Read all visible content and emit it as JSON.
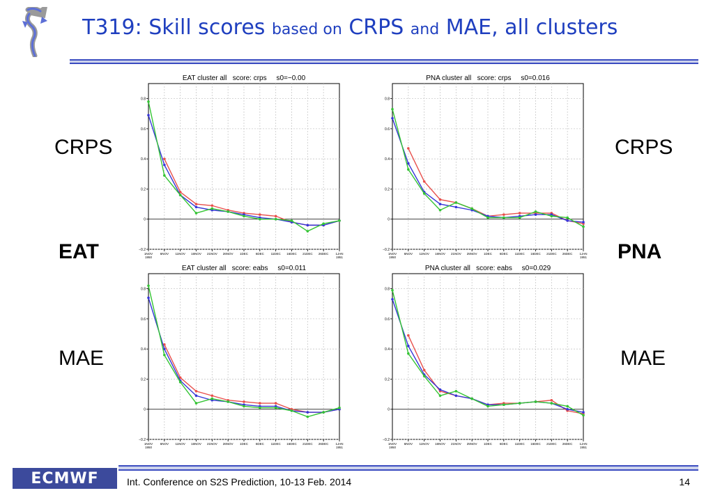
{
  "slide": {
    "title_parts": [
      "T319: Skill scores ",
      "based on",
      " CRPS ",
      "and",
      " MAE,  all clusters"
    ],
    "labels": {
      "crps_left": "CRPS",
      "crps_right": "CRPS",
      "eat": "EAT",
      "pna": "PNA",
      "mae_left": "MAE",
      "mae_right": "MAE"
    },
    "footer": {
      "logo_text": "ECMWF",
      "conference": "Int. Conference on S2S Prediction, 10-13 Feb. 2014",
      "page": "14"
    },
    "colors": {
      "title": "#1f3fbf",
      "rule": "#3b4cc0",
      "red": "#e8504c",
      "blue": "#3535d8",
      "green": "#33c433",
      "logo_bg": "#3c4a9c"
    }
  },
  "chart_data": [
    {
      "type": "line",
      "title": "EAT cluster all   score: crps     s0=−0.00",
      "x": [
        "1NOV\n1950",
        "6NOV",
        "11NOV",
        "16NOV",
        "21NOV",
        "26NOV",
        "1DEC",
        "6DEC",
        "11DEC",
        "16DEC",
        "21DEC",
        "26DEC",
        "1JAN\n1951"
      ],
      "yticks": [
        "−0.2",
        "0",
        "0.2",
        "0.4",
        "0.6",
        "0.8"
      ],
      "ylim": [
        -0.2,
        0.9
      ],
      "series": [
        {
          "color": "red",
          "values": [
            null,
            0.4,
            0.18,
            0.1,
            0.09,
            0.06,
            0.04,
            0.03,
            0.02,
            -0.02,
            -0.04,
            -0.04,
            -0.01
          ]
        },
        {
          "color": "blue",
          "values": [
            0.69,
            0.36,
            0.16,
            0.08,
            0.06,
            0.05,
            0.03,
            0.01,
            0.0,
            -0.02,
            -0.04,
            -0.04,
            -0.01
          ]
        },
        {
          "color": "green",
          "values": [
            0.78,
            0.29,
            0.16,
            0.04,
            0.07,
            0.05,
            0.02,
            0.0,
            0.0,
            -0.01,
            -0.08,
            -0.03,
            -0.01
          ]
        }
      ]
    },
    {
      "type": "line",
      "title": "PNA cluster all   score: crps     s0=0.016",
      "x": [
        "1NOV\n1950",
        "6NOV",
        "11NOV",
        "16NOV",
        "21NOV",
        "25NOV",
        "1DEC",
        "6DEC",
        "11DEC",
        "16DEC",
        "21DEC",
        "26DEC",
        "1JAN\n1951"
      ],
      "yticks": [
        "−0.2",
        "0",
        "0.2",
        "0.4",
        "0.6",
        "0.8"
      ],
      "ylim": [
        -0.2,
        0.9
      ],
      "series": [
        {
          "color": "red",
          "values": [
            null,
            0.47,
            0.25,
            0.13,
            0.11,
            0.07,
            0.02,
            0.03,
            0.04,
            0.04,
            0.04,
            -0.01,
            -0.03
          ]
        },
        {
          "color": "blue",
          "values": [
            0.67,
            0.37,
            0.18,
            0.1,
            0.08,
            0.06,
            0.02,
            0.01,
            0.02,
            0.03,
            0.03,
            -0.01,
            -0.02
          ]
        },
        {
          "color": "green",
          "values": [
            0.73,
            0.33,
            0.17,
            0.06,
            0.11,
            0.07,
            0.01,
            0.01,
            0.01,
            0.05,
            0.02,
            0.01,
            -0.05
          ]
        }
      ]
    },
    {
      "type": "line",
      "title": "EAT cluster all   score: eabs     s0=0.011",
      "x": [
        "1NOV\n1950",
        "6NOV",
        "11NOV",
        "16NOV",
        "21NOV",
        "26NOV",
        "1DEC",
        "6DEC",
        "11DEC",
        "16DEC",
        "21DEC",
        "26DEC",
        "1JAN\n1951"
      ],
      "yticks": [
        "−0.2",
        "0",
        "0.2",
        "0.4",
        "0.6",
        "0.8"
      ],
      "ylim": [
        -0.2,
        0.9
      ],
      "series": [
        {
          "color": "red",
          "values": [
            null,
            0.43,
            0.21,
            0.12,
            0.09,
            0.06,
            0.05,
            0.04,
            0.04,
            0.0,
            -0.02,
            -0.02,
            0.0
          ]
        },
        {
          "color": "blue",
          "values": [
            0.74,
            0.4,
            0.19,
            0.09,
            0.06,
            0.05,
            0.03,
            0.02,
            0.02,
            -0.01,
            -0.02,
            -0.02,
            0.0
          ]
        },
        {
          "color": "green",
          "values": [
            0.82,
            0.36,
            0.18,
            0.04,
            0.07,
            0.05,
            0.02,
            0.01,
            0.01,
            -0.01,
            -0.05,
            -0.02,
            0.01
          ]
        }
      ]
    },
    {
      "type": "line",
      "title": "PNA cluster all   score: eabs     s0=0.029",
      "x": [
        "1NOV\n1950",
        "6NOV",
        "11NOV",
        "16NOV",
        "21NOV",
        "25NOV",
        "1DEC",
        "6DEC",
        "11DEC",
        "16DEC",
        "21DEC",
        "26DEC",
        "1JAN\n1951"
      ],
      "yticks": [
        "−0.2",
        "0",
        "0.2",
        "0.4",
        "0.6",
        "0.8"
      ],
      "ylim": [
        -0.2,
        0.9
      ],
      "series": [
        {
          "color": "red",
          "values": [
            null,
            0.49,
            0.26,
            0.12,
            0.09,
            0.07,
            0.03,
            0.04,
            0.04,
            0.05,
            0.06,
            -0.01,
            -0.03
          ]
        },
        {
          "color": "blue",
          "values": [
            0.73,
            0.42,
            0.23,
            0.13,
            0.09,
            0.07,
            0.03,
            0.03,
            0.04,
            0.05,
            0.04,
            0.0,
            -0.02
          ]
        },
        {
          "color": "green",
          "values": [
            0.79,
            0.37,
            0.22,
            0.09,
            0.12,
            0.07,
            0.02,
            0.03,
            0.04,
            0.05,
            0.04,
            0.02,
            -0.04
          ]
        }
      ]
    }
  ]
}
